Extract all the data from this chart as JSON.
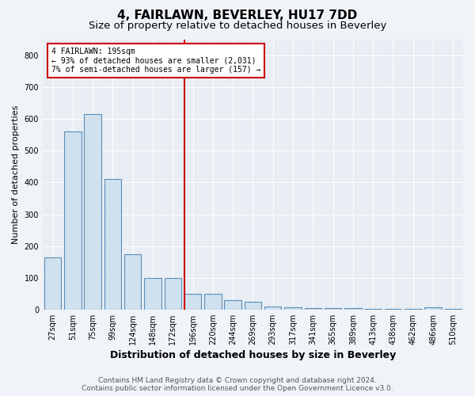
{
  "title": "4, FAIRLAWN, BEVERLEY, HU17 7DD",
  "subtitle": "Size of property relative to detached houses in Beverley",
  "xlabel": "Distribution of detached houses by size in Beverley",
  "ylabel": "Number of detached properties",
  "categories": [
    "27sqm",
    "51sqm",
    "75sqm",
    "99sqm",
    "124sqm",
    "148sqm",
    "172sqm",
    "196sqm",
    "220sqm",
    "244sqm",
    "269sqm",
    "293sqm",
    "317sqm",
    "341sqm",
    "365sqm",
    "389sqm",
    "413sqm",
    "438sqm",
    "462sqm",
    "486sqm",
    "510sqm"
  ],
  "values": [
    165,
    560,
    615,
    410,
    175,
    100,
    100,
    50,
    50,
    30,
    25,
    10,
    8,
    5,
    5,
    5,
    3,
    2,
    2,
    8,
    3
  ],
  "bar_color": "#cfe0ef",
  "bar_edge_color": "#5b8db8",
  "red_line_index": 7,
  "annotation_line1": "4 FAIRLAWN: 195sqm",
  "annotation_line2": "← 93% of detached houses are smaller (2,031)",
  "annotation_line3": "7% of semi-detached houses are larger (157) →",
  "annotation_box_color": "#ffffff",
  "annotation_box_edge_color": "#cc0000",
  "ylim": [
    0,
    850
  ],
  "yticks": [
    0,
    100,
    200,
    300,
    400,
    500,
    600,
    700,
    800
  ],
  "footer_line1": "Contains HM Land Registry data © Crown copyright and database right 2024.",
  "footer_line2": "Contains public sector information licensed under the Open Government Licence v3.0.",
  "background_color": "#f0f4f8",
  "plot_bg_color": "#e8eef4",
  "title_fontsize": 11,
  "subtitle_fontsize": 9.5,
  "xlabel_fontsize": 9,
  "ylabel_fontsize": 8,
  "tick_fontsize": 7,
  "footer_fontsize": 6.5
}
